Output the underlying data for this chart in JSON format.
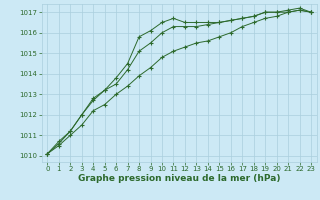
{
  "x_ticks": [
    0,
    1,
    2,
    3,
    4,
    5,
    6,
    7,
    8,
    9,
    10,
    11,
    12,
    13,
    14,
    15,
    16,
    17,
    18,
    19,
    20,
    21,
    22,
    23
  ],
  "series": [
    {
      "x": [
        0,
        1,
        2,
        3,
        4,
        5,
        6,
        7,
        8,
        9,
        10,
        11,
        12,
        13,
        14,
        15,
        16,
        17,
        18,
        19,
        20,
        21,
        22,
        23
      ],
      "y": [
        1010.1,
        1010.7,
        1011.2,
        1012.0,
        1012.7,
        1013.2,
        1013.8,
        1014.5,
        1015.8,
        1016.1,
        1016.5,
        1016.7,
        1016.5,
        1016.5,
        1016.5,
        1016.5,
        1016.6,
        1016.7,
        1016.8,
        1017.0,
        1017.0,
        1017.1,
        1017.2,
        1017.0
      ],
      "color": "#2d6a2d",
      "marker": "+"
    },
    {
      "x": [
        0,
        1,
        2,
        3,
        4,
        5,
        6,
        7,
        8,
        9,
        10,
        11,
        12,
        13,
        14,
        15,
        16,
        17,
        18,
        19,
        20,
        21,
        22,
        23
      ],
      "y": [
        1010.1,
        1010.6,
        1011.2,
        1012.0,
        1012.8,
        1013.2,
        1013.5,
        1014.2,
        1015.1,
        1015.5,
        1016.0,
        1016.3,
        1016.3,
        1016.3,
        1016.4,
        1016.5,
        1016.6,
        1016.7,
        1016.8,
        1017.0,
        1017.0,
        1017.0,
        1017.1,
        1017.0
      ],
      "color": "#2d6a2d",
      "marker": "+"
    },
    {
      "x": [
        0,
        1,
        2,
        3,
        4,
        5,
        6,
        7,
        8,
        9,
        10,
        11,
        12,
        13,
        14,
        15,
        16,
        17,
        18,
        19,
        20,
        21,
        22,
        23
      ],
      "y": [
        1010.1,
        1010.5,
        1011.0,
        1011.5,
        1012.2,
        1012.5,
        1013.0,
        1013.4,
        1013.9,
        1014.3,
        1014.8,
        1015.1,
        1015.3,
        1015.5,
        1015.6,
        1015.8,
        1016.0,
        1016.3,
        1016.5,
        1016.7,
        1016.8,
        1017.0,
        1017.1,
        1017.0
      ],
      "color": "#2d6a2d",
      "marker": "+"
    }
  ],
  "ylim": [
    1009.7,
    1017.4
  ],
  "yticks": [
    1010,
    1011,
    1012,
    1013,
    1014,
    1015,
    1016,
    1017
  ],
  "xlim": [
    -0.5,
    23.5
  ],
  "xlabel": "Graphe pression niveau de la mer (hPa)",
  "bg_color": "#cce9f5",
  "grid_color": "#aacfde",
  "line_color": "#2d6a2d",
  "tick_color": "#2d6a2d",
  "label_color": "#2d6a2d",
  "tick_fontsize": 5.0,
  "xlabel_fontsize": 6.5
}
